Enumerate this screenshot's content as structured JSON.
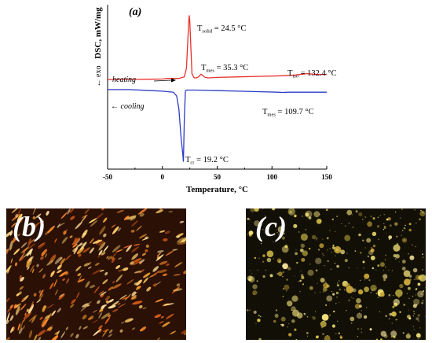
{
  "chart_data": {
    "type": "line",
    "panel_label": "(a)",
    "xlabel": "Temperature, °C",
    "ylabel": "DSC, mW/mg",
    "exo_label": "← exo",
    "xlim": [
      -50,
      150
    ],
    "xticks": [
      "-50",
      "0",
      "50",
      "100",
      "150"
    ],
    "y_ticks_shown": false,
    "grid": false,
    "series": [
      {
        "name": "heating",
        "color": "#e8322c",
        "x": [
          -50,
          -30,
          -10,
          0,
          5,
          10,
          15,
          20,
          22,
          24,
          24.5,
          25,
          27,
          29,
          31,
          33,
          35.3,
          37,
          39,
          42,
          50,
          70,
          90,
          110,
          120,
          125,
          132.4,
          138,
          145,
          150
        ],
        "y": [
          0.95,
          0.96,
          0.98,
          1.0,
          1.05,
          1.05,
          1.05,
          1.2,
          2.0,
          6.3,
          7.0,
          6.5,
          1.5,
          1.1,
          1.1,
          1.2,
          1.45,
          1.3,
          1.15,
          1.1,
          1.15,
          1.2,
          1.25,
          1.3,
          1.35,
          1.42,
          1.5,
          1.45,
          1.43,
          1.42
        ],
        "label": "heating"
      },
      {
        "name": "cooling",
        "color": "#2b3cc4",
        "x": [
          -50,
          -30,
          -10,
          0,
          10,
          13,
          15,
          17,
          18.5,
          19.2,
          20,
          21,
          22,
          30,
          50,
          70,
          90,
          105,
          109.7,
          115,
          130,
          150
        ],
        "y": [
          0.0,
          0.0,
          -0.1,
          -0.15,
          -0.25,
          -0.6,
          -1.8,
          -4.5,
          -6.0,
          -6.8,
          -3.0,
          -0.15,
          -0.05,
          -0.05,
          -0.1,
          -0.15,
          -0.2,
          -0.25,
          -0.27,
          -0.25,
          -0.25,
          -0.25
        ],
        "label": "← cooling"
      }
    ],
    "annotations": [
      {
        "main": "T",
        "sub": "solid",
        "rest": " = 24.5 °C"
      },
      {
        "main": "T",
        "sub": "mes",
        "rest": " = 35.3 °C"
      },
      {
        "main": "T",
        "sub": "iso",
        "rest": " = 132.4 °C"
      },
      {
        "main": "T",
        "sub": "mes",
        "rest": " = 109.7 °C"
      },
      {
        "main": "T",
        "sub": "cr",
        "rest": " = 19.2 °C"
      }
    ]
  },
  "photos": [
    {
      "label": "(b)",
      "style": "elongated",
      "bg": "#2a1005",
      "seed": 7,
      "colors": [
        "#ffcf6a",
        "#f0a030",
        "#ff8a2a",
        "#ffe09a",
        "#d25a18"
      ]
    },
    {
      "label": "(c)",
      "style": "granular",
      "bg": "#121006",
      "seed": 13,
      "colors": [
        "#f5e27a",
        "#d8c24a",
        "#ffec9e",
        "#c9a638",
        "#e0d070"
      ]
    }
  ]
}
